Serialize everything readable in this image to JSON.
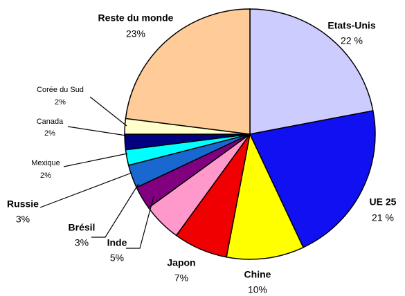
{
  "chart_data": {
    "type": "pie",
    "categories": [
      "Etats-Unis",
      "UE 25",
      "Chine",
      "Japon",
      "Inde",
      "Brésil",
      "Russie",
      "Mexique",
      "Canada",
      "Corée du Sud",
      "Reste du monde"
    ],
    "values": [
      22,
      21,
      10,
      7,
      5,
      3,
      3,
      2,
      2,
      2,
      23
    ],
    "value_labels": [
      "22 %",
      "21 %",
      "10%",
      "7%",
      "5%",
      "3%",
      "3%",
      "2%",
      "2%",
      "2%",
      "23%"
    ],
    "colors": [
      "#ccccff",
      "#1010f0",
      "#ffff00",
      "#f00000",
      "#ff99cc",
      "#800080",
      "#1868d0",
      "#00ffff",
      "#000080",
      "#ffffcc",
      "#ffcc99"
    ]
  }
}
